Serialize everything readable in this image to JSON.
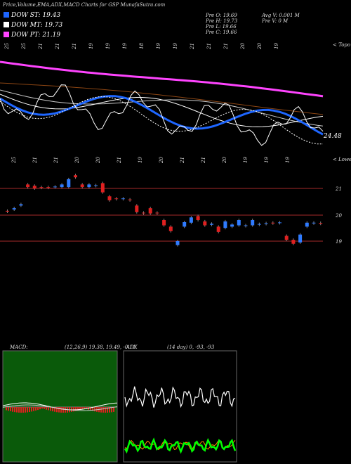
{
  "header": {
    "title": "Price,Volume,EMA,ADX,MACD Charts for GSP MunafaSutra.com",
    "legend": [
      {
        "label": "DOW ST: 19.43",
        "color": "#1e66ff"
      },
      {
        "label": "DOW MT: 19.73",
        "color": "#ffffff"
      },
      {
        "label": "DOW PT: 21.19",
        "color": "#ff44ff"
      }
    ],
    "stats_left": [
      "Pre  O: 19.69",
      "Pre  H: 19.73",
      "Pre  L: 19.66",
      "Pre  C: 19.66"
    ],
    "stats_right": [
      "Avg V: 0.001 M",
      "Pre  V: 0  M"
    ]
  },
  "upper_panel": {
    "label_topo": "< Topo",
    "label_lower": "< Lower",
    "last_value": "24.48",
    "top_dates": [
      "25",
      "25",
      "21",
      "21",
      "21",
      "19",
      "19",
      "19",
      "18",
      "19",
      "19",
      "21",
      "21",
      "21",
      "20",
      "20",
      "19"
    ],
    "bottom_dates": [
      "25",
      "21",
      "21",
      "20",
      "20",
      "21",
      "19",
      "20",
      "21",
      "21",
      "20",
      "19",
      "19",
      "19"
    ]
  },
  "price_panel": {
    "levels": [
      "21",
      "20",
      "19"
    ]
  },
  "macd": {
    "title": "MACD:",
    "params": "(12,26,9) 19.38, 19.49, -0.11"
  },
  "adx": {
    "title": "ADX",
    "params": "(14 day) 0, -93, -93"
  },
  "colors": {
    "background": "#000000",
    "ema_short": "#1e66ff",
    "ema_mid": "#ffffff",
    "ema_long": "#ff44ff",
    "bull": "#2f7bff",
    "bear": "#e02020",
    "grid_line": "#a52a2a",
    "macd_fill": "#0a5a0a",
    "adx_plus": "#00ff00",
    "adx_minus": "#ff8c00"
  },
  "chart_data": [
    {
      "type": "line",
      "title": "",
      "series": [
        {
          "name": "DOW ST",
          "values": [
            19.43
          ]
        },
        {
          "name": "DOW MT",
          "values": [
            19.73
          ]
        },
        {
          "name": "DOW PT",
          "values": [
            21.19
          ]
        }
      ]
    },
    {
      "type": "bar",
      "xlabel": "",
      "ylabel": "",
      "ylim": [
        18.5,
        21.5
      ],
      "candles": [
        {
          "o": 20.15,
          "c": 20.12
        },
        {
          "o": 20.2,
          "c": 20.25
        },
        {
          "o": 20.35,
          "c": 20.4
        },
        {
          "o": 21.15,
          "c": 21.05
        },
        {
          "o": 21.1,
          "c": 21.0
        },
        {
          "o": 21.05,
          "c": 21.03
        },
        {
          "o": 21.05,
          "c": 21.04
        },
        {
          "o": 21.05,
          "c": 21.07
        },
        {
          "o": 21.05,
          "c": 21.15
        },
        {
          "o": 21.05,
          "c": 21.35
        },
        {
          "o": 21.5,
          "c": 21.42
        },
        {
          "o": 21.15,
          "c": 21.05
        },
        {
          "o": 21.05,
          "c": 21.15
        },
        {
          "o": 21.1,
          "c": 21.12
        },
        {
          "o": 21.2,
          "c": 20.85
        },
        {
          "o": 20.7,
          "c": 20.55
        },
        {
          "o": 20.62,
          "c": 20.6
        },
        {
          "o": 20.6,
          "c": 20.62
        },
        {
          "o": 20.58,
          "c": 20.55
        },
        {
          "o": 20.35,
          "c": 20.1
        },
        {
          "o": 20.08,
          "c": 20.07
        },
        {
          "o": 20.25,
          "c": 20.05
        },
        {
          "o": 20.08,
          "c": 20.06
        },
        {
          "o": 19.8,
          "c": 19.6
        },
        {
          "o": 19.55,
          "c": 19.38
        },
        {
          "o": 18.85,
          "c": 19.0
        },
        {
          "o": 19.55,
          "c": 19.72
        },
        {
          "o": 19.7,
          "c": 19.9
        },
        {
          "o": 19.95,
          "c": 19.8
        },
        {
          "o": 19.75,
          "c": 19.6
        },
        {
          "o": 19.62,
          "c": 19.66
        },
        {
          "o": 19.55,
          "c": 19.35
        },
        {
          "o": 19.5,
          "c": 19.75
        },
        {
          "o": 19.55,
          "c": 19.63
        },
        {
          "o": 19.6,
          "c": 19.8
        },
        {
          "o": 19.58,
          "c": 19.6
        },
        {
          "o": 19.6,
          "c": 19.8
        },
        {
          "o": 19.63,
          "c": 19.65
        },
        {
          "o": 19.67,
          "c": 19.68
        },
        {
          "o": 19.7,
          "c": 19.69
        },
        {
          "o": 19.7,
          "c": 19.71
        },
        {
          "o": 19.2,
          "c": 19.05
        },
        {
          "o": 19.05,
          "c": 18.9
        },
        {
          "o": 18.95,
          "c": 19.25
        },
        {
          "o": 19.55,
          "c": 19.7
        },
        {
          "o": 19.68,
          "c": 19.7
        },
        {
          "o": 19.69,
          "c": 19.66
        }
      ]
    }
  ]
}
